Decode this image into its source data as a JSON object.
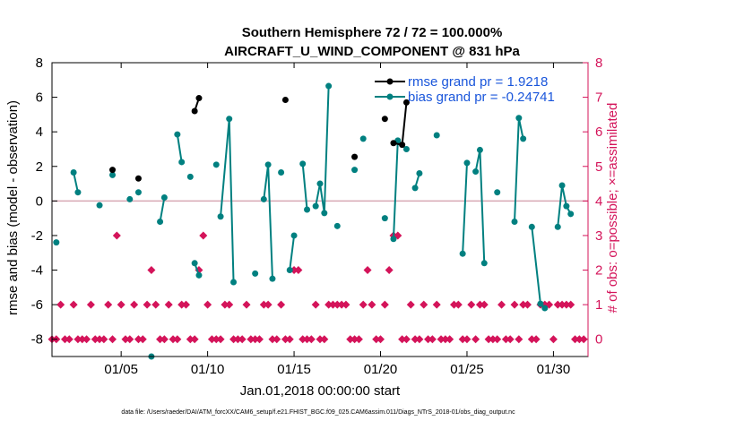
{
  "chart_data": {
    "type": "line",
    "title_line1": "Southern Hemisphere 72 / 72 = 100.000%",
    "title_line2": "AIRCRAFT_U_WIND_COMPONENT @ 831 hPa",
    "xlabel": "Jan.01,2018 00:00:00 start",
    "ylabel_left": "rmse and bias (model - observation)",
    "ylabel_right": "# of obs: o=possible; ×=assimilated",
    "footer": "data file: /Users/raeder/DAI/ATM_forcXX/CAM6_setup/f.e21.FHIST_BGC.f09_025.CAM6assim.011/Diags_NTrS_2018-01/obs_diag_output.nc",
    "xlim": [
      1,
      32
    ],
    "ylim_left": [
      -9,
      8
    ],
    "ylim_right": [
      -0.5,
      8
    ],
    "x_ticks": [
      {
        "v": 5,
        "label": "01/05"
      },
      {
        "v": 10,
        "label": "01/10"
      },
      {
        "v": 15,
        "label": "01/15"
      },
      {
        "v": 20,
        "label": "01/20"
      },
      {
        "v": 25,
        "label": "01/25"
      },
      {
        "v": 30,
        "label": "01/30"
      }
    ],
    "y_ticks_left": [
      {
        "v": -8,
        "label": "-8"
      },
      {
        "v": -6,
        "label": "-6"
      },
      {
        "v": -4,
        "label": "-4"
      },
      {
        "v": -2,
        "label": "-2"
      },
      {
        "v": 0,
        "label": "0"
      },
      {
        "v": 2,
        "label": "2"
      },
      {
        "v": 4,
        "label": "4"
      },
      {
        "v": 6,
        "label": "6"
      },
      {
        "v": 8,
        "label": "8"
      }
    ],
    "y_ticks_right": [
      {
        "v": 0,
        "label": "0"
      },
      {
        "v": 1,
        "label": "1"
      },
      {
        "v": 2,
        "label": "2"
      },
      {
        "v": 3,
        "label": "3"
      },
      {
        "v": 4,
        "label": "4"
      },
      {
        "v": 5,
        "label": "5"
      },
      {
        "v": 6,
        "label": "6"
      },
      {
        "v": 7,
        "label": "7"
      },
      {
        "v": 8,
        "label": "8"
      }
    ],
    "colors": {
      "rmse": "#000000",
      "bias": "#008080",
      "obs": "#d4145a",
      "zero": "#d8a8b4",
      "axis": "#000000"
    },
    "series": [
      {
        "name": "rmse grand pr = 1.9218",
        "axis": "left",
        "segments": [
          [
            [
              4.5,
              1.8
            ]
          ],
          [
            [
              6.0,
              1.3
            ]
          ],
          [
            [
              9.25,
              5.2
            ],
            [
              9.5,
              5.95
            ]
          ],
          [
            [
              14.5,
              5.85
            ]
          ],
          [
            [
              18.5,
              2.55
            ]
          ],
          [
            [
              20.25,
              4.75
            ]
          ],
          [
            [
              20.75,
              3.35
            ],
            [
              21.25,
              3.25
            ],
            [
              21.5,
              5.7
            ]
          ]
        ]
      },
      {
        "name": "bias grand pr = -0.24741",
        "axis": "left",
        "segments": [
          [
            [
              1.25,
              -2.4
            ]
          ],
          [
            [
              2.25,
              1.65
            ],
            [
              2.5,
              0.5
            ]
          ],
          [
            [
              3.75,
              -0.25
            ]
          ],
          [
            [
              4.5,
              1.5
            ]
          ],
          [
            [
              5.5,
              0.1
            ]
          ],
          [
            [
              6.0,
              0.5
            ]
          ],
          [
            [
              6.75,
              -9.0
            ]
          ],
          [
            [
              7.25,
              -1.2
            ],
            [
              7.5,
              0.2
            ]
          ],
          [
            [
              8.25,
              3.85
            ],
            [
              8.5,
              2.25
            ]
          ],
          [
            [
              9.0,
              1.4
            ]
          ],
          [
            [
              9.25,
              -3.6
            ],
            [
              9.5,
              -4.3
            ]
          ],
          [
            [
              10.5,
              2.1
            ]
          ],
          [
            [
              10.75,
              -0.9
            ],
            [
              11.25,
              4.75
            ],
            [
              11.5,
              -4.7
            ]
          ],
          [
            [
              12.75,
              -4.2
            ]
          ],
          [
            [
              13.25,
              0.1
            ],
            [
              13.5,
              2.1
            ],
            [
              13.75,
              -4.5
            ]
          ],
          [
            [
              14.25,
              1.65
            ]
          ],
          [
            [
              14.75,
              -4.0
            ],
            [
              15.0,
              -2.0
            ]
          ],
          [
            [
              15.5,
              2.15
            ],
            [
              15.75,
              -0.5
            ]
          ],
          [
            [
              16.25,
              -0.3
            ],
            [
              16.5,
              1.0
            ],
            [
              16.75,
              -0.7
            ],
            [
              17.0,
              6.65
            ]
          ],
          [
            [
              17.5,
              -1.45
            ]
          ],
          [
            [
              18.5,
              1.8
            ]
          ],
          [
            [
              19.0,
              3.6
            ]
          ],
          [
            [
              20.25,
              -1.0
            ]
          ],
          [
            [
              20.75,
              -2.2
            ],
            [
              21.0,
              3.5
            ],
            [
              21.5,
              3.0
            ]
          ],
          [
            [
              22.0,
              0.75
            ],
            [
              22.25,
              1.6
            ]
          ],
          [
            [
              23.25,
              3.8
            ]
          ],
          [
            [
              24.75,
              -3.05
            ],
            [
              25.0,
              2.2
            ]
          ],
          [
            [
              25.5,
              1.7
            ],
            [
              25.75,
              2.95
            ],
            [
              26.0,
              -3.6
            ]
          ],
          [
            [
              26.75,
              0.5
            ]
          ],
          [
            [
              27.75,
              -1.2
            ],
            [
              28.0,
              4.8
            ],
            [
              28.25,
              3.6
            ]
          ],
          [
            [
              28.75,
              -1.5
            ],
            [
              29.25,
              -5.95
            ],
            [
              29.5,
              -6.2
            ]
          ],
          [
            [
              30.25,
              -1.5
            ],
            [
              30.5,
              0.9
            ],
            [
              30.75,
              -0.3
            ],
            [
              31.0,
              -0.75
            ]
          ]
        ]
      }
    ],
    "obs_counts": [
      0,
      0,
      1,
      0,
      0,
      1,
      0,
      0,
      0,
      1,
      0,
      0,
      0,
      1,
      0,
      3,
      1,
      0,
      0,
      1,
      0,
      0,
      1,
      2,
      1,
      0,
      0,
      1,
      0,
      0,
      1,
      1,
      0,
      0,
      2,
      3,
      1,
      0,
      0,
      0,
      1,
      1,
      0,
      0,
      0,
      1,
      0,
      0,
      0,
      1,
      1,
      0,
      0,
      1,
      0,
      0,
      2,
      2,
      0,
      0,
      0,
      1,
      0,
      0,
      1,
      1,
      1,
      1,
      1,
      0,
      0,
      0,
      1,
      2,
      1,
      0,
      0,
      1,
      2,
      3,
      3,
      0,
      0,
      1,
      0,
      0,
      1,
      0,
      0,
      1,
      0,
      0,
      0,
      1,
      1,
      0,
      0,
      1,
      0,
      1,
      1,
      0,
      0,
      0,
      1,
      0,
      0,
      1,
      0,
      1,
      1,
      0,
      0,
      1,
      1,
      1,
      0,
      1,
      1,
      1,
      1,
      0,
      0,
      0
    ]
  }
}
